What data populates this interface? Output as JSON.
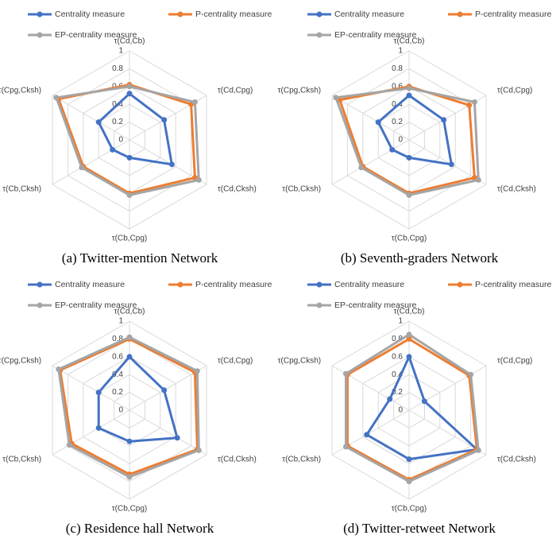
{
  "chart_data": [
    {
      "type": "radar",
      "caption": "(a) Twitter-mention Network",
      "categories": [
        "τ(Cd,Cb)",
        "τ(Cd,Cpg)",
        "τ(Cd,Cksh)",
        "τ(Cb,Cpg)",
        "τ(Cb,Cksh)",
        "τ(Cpg,Cksh)"
      ],
      "ylim": [
        0,
        1
      ],
      "yticks": [
        0,
        0.2,
        0.4,
        0.6,
        0.8,
        1
      ],
      "series": [
        {
          "name": "Centrality measure",
          "color": "#4472c4",
          "values": [
            0.52,
            0.45,
            0.55,
            0.2,
            0.22,
            0.4
          ]
        },
        {
          "name": "P-centrality measure",
          "color": "#ed7d31",
          "values": [
            0.62,
            0.8,
            0.85,
            0.6,
            0.6,
            0.92
          ]
        },
        {
          "name": "EP-centrality measure",
          "color": "#a5a5a5",
          "values": [
            0.6,
            0.85,
            0.9,
            0.62,
            0.62,
            0.95
          ]
        }
      ]
    },
    {
      "type": "radar",
      "caption": "(b) Seventh-graders Network",
      "categories": [
        "τ(Cd,Cb)",
        "τ(Cd,Cpg)",
        "τ(Cd,Cksh)",
        "τ(Cb,Cpg)",
        "τ(Cb,Cksh)",
        "τ(Cpg,Cksh)"
      ],
      "ylim": [
        0,
        1
      ],
      "yticks": [
        0,
        0.2,
        0.4,
        0.6,
        0.8,
        1
      ],
      "series": [
        {
          "name": "Centrality measure",
          "color": "#4472c4",
          "values": [
            0.5,
            0.45,
            0.55,
            0.2,
            0.22,
            0.4
          ]
        },
        {
          "name": "P-centrality measure",
          "color": "#ed7d31",
          "values": [
            0.6,
            0.78,
            0.85,
            0.6,
            0.6,
            0.9
          ]
        },
        {
          "name": "EP-centrality measure",
          "color": "#a5a5a5",
          "values": [
            0.58,
            0.85,
            0.9,
            0.62,
            0.62,
            0.95
          ]
        }
      ]
    },
    {
      "type": "radar",
      "caption": "(c) Residence hall Network",
      "categories": [
        "τ(Cd,Cb)",
        "τ(Cd,Cpg)",
        "τ(Cd,Cksh)",
        "τ(Cb,Cpg)",
        "τ(Cb,Cksh)",
        "τ(Cpg,Cksh)"
      ],
      "ylim": [
        0,
        1
      ],
      "yticks": [
        0,
        0.2,
        0.4,
        0.6,
        0.8,
        1
      ],
      "series": [
        {
          "name": "Centrality measure",
          "color": "#4472c4",
          "values": [
            0.6,
            0.45,
            0.62,
            0.35,
            0.4,
            0.4
          ]
        },
        {
          "name": "P-centrality measure",
          "color": "#ed7d31",
          "values": [
            0.8,
            0.85,
            0.88,
            0.72,
            0.75,
            0.9
          ]
        },
        {
          "name": "EP-centrality measure",
          "color": "#a5a5a5",
          "values": [
            0.82,
            0.88,
            0.9,
            0.75,
            0.78,
            0.92
          ]
        }
      ]
    },
    {
      "type": "radar",
      "caption": "(d) Twitter-retweet Network",
      "categories": [
        "τ(Cd,Cb)",
        "τ(Cd,Cpg)",
        "τ(Cd,Cksh)",
        "τ(Cb,Cpg)",
        "τ(Cb,Cksh)",
        "τ(Cpg,Cksh)"
      ],
      "ylim": [
        0,
        1
      ],
      "yticks": [
        0,
        0.2,
        0.4,
        0.6,
        0.8,
        1
      ],
      "series": [
        {
          "name": "Centrality measure",
          "color": "#4472c4",
          "values": [
            0.6,
            0.2,
            0.88,
            0.55,
            0.55,
            0.25
          ]
        },
        {
          "name": "P-centrality measure",
          "color": "#ed7d31",
          "values": [
            0.8,
            0.78,
            0.88,
            0.78,
            0.8,
            0.8
          ]
        },
        {
          "name": "EP-centrality measure",
          "color": "#a5a5a5",
          "values": [
            0.85,
            0.8,
            0.9,
            0.8,
            0.82,
            0.82
          ]
        }
      ]
    }
  ]
}
